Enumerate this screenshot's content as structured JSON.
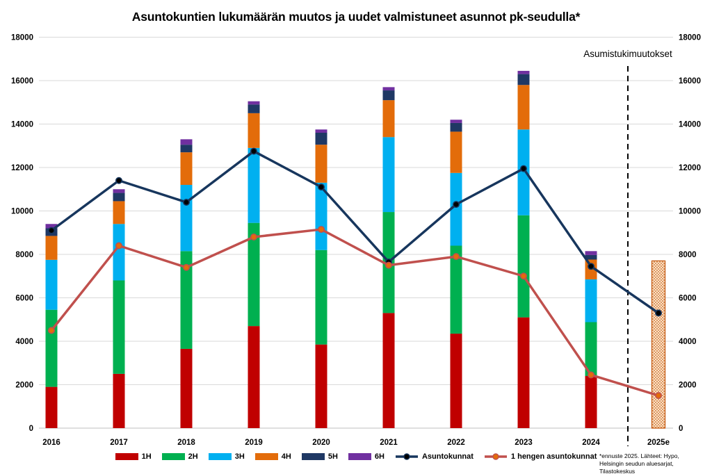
{
  "title": "Asuntokuntien lukumäärän muutos ja uudet valmistuneet asunnot pk-seudulla*",
  "annotation": {
    "label": "Asumistukimuutokset"
  },
  "footnote": {
    "line1": "*ennuste 2025. Lähteet: Hypo,",
    "line2": "Helsingin seudun aluesarjat, Tilastokeskus"
  },
  "colors": {
    "gridline": "#D9D9D9",
    "axis_line": "#BFBFBF",
    "dashed_annotation_line": "#000000",
    "background": "#FFFFFF"
  },
  "chart_data": {
    "type": "bar",
    "subtype": "stacked-bars-with-lines-combo",
    "categories": [
      "2016",
      "2017",
      "2018",
      "2019",
      "2020",
      "2021",
      "2022",
      "2023",
      "2024",
      "2025e"
    ],
    "bar_series": [
      {
        "name": "1H",
        "color": "#C00000",
        "values": [
          1900,
          2500,
          3650,
          4700,
          3850,
          5300,
          4350,
          5100,
          2400
        ]
      },
      {
        "name": "2H",
        "color": "#00B050",
        "values": [
          3550,
          4300,
          4500,
          4750,
          4350,
          4650,
          4050,
          4700,
          2480
        ]
      },
      {
        "name": "3H",
        "color": "#00B0F0",
        "values": [
          2300,
          2600,
          3050,
          3450,
          3100,
          3450,
          3350,
          3950,
          1970
        ]
      },
      {
        "name": "4H",
        "color": "#E36C0A",
        "values": [
          1100,
          1050,
          1500,
          1600,
          1750,
          1700,
          1900,
          2050,
          910
        ]
      },
      {
        "name": "5H",
        "color": "#1F3864",
        "values": [
          350,
          380,
          350,
          400,
          550,
          450,
          400,
          500,
          210
        ]
      },
      {
        "name": "6H",
        "color": "#7030A0",
        "values": [
          200,
          170,
          250,
          150,
          150,
          150,
          150,
          150,
          180
        ]
      }
    ],
    "bar_totals": [
      9400,
      11000,
      13300,
      15050,
      13750,
      15700,
      14200,
      16450,
      8150
    ],
    "forecast_bar": {
      "category": "2025e",
      "value": 7700,
      "style": "dotted-hatch",
      "fill": "#FBE3C8",
      "dot_color": "#C55A11",
      "border": "#C55A11"
    },
    "line_series": [
      {
        "name": "Asuntokunnat",
        "color": "#17365D",
        "marker_fill": "#000000",
        "values": [
          9100,
          11400,
          10400,
          12750,
          11100,
          7650,
          10300,
          11950,
          7450,
          5300
        ]
      },
      {
        "name": "1 hengen asuntokunnat",
        "color": "#C0504D",
        "marker_fill": "#E36C0A",
        "values": [
          4500,
          8400,
          7400,
          8800,
          9150,
          7500,
          7900,
          7000,
          2450,
          1500
        ]
      }
    ],
    "ylim": [
      0,
      18000
    ],
    "ytick_step": 2000,
    "y_axis_sides": [
      "left",
      "right"
    ],
    "grid": true,
    "legend_position": "bottom",
    "annotation_line_x_between": [
      "2024",
      "2025e"
    ]
  }
}
